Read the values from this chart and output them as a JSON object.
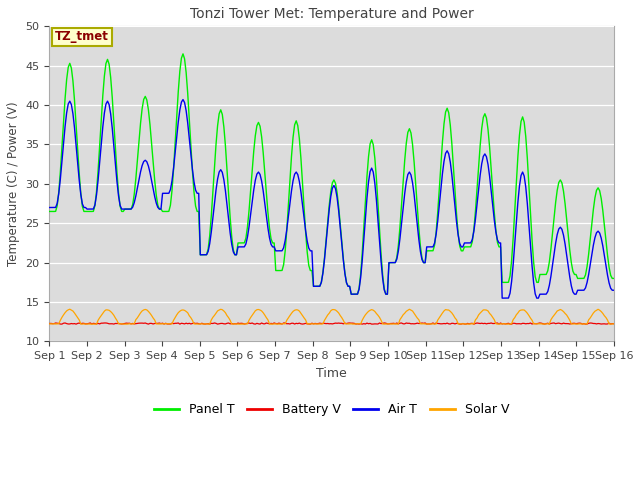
{
  "title": "Tonzi Tower Met: Temperature and Power",
  "xlabel": "Time",
  "ylabel": "Temperature (C) / Power (V)",
  "ylim": [
    10,
    50
  ],
  "xlim": [
    0,
    15
  ],
  "xtick_labels": [
    "Sep 1",
    "Sep 2",
    "Sep 3",
    "Sep 4",
    "Sep 5",
    "Sep 6",
    "Sep 7",
    "Sep 8",
    "Sep 9",
    "Sep 10",
    "Sep 11",
    "Sep 12",
    "Sep 13",
    "Sep 14",
    "Sep 15",
    "Sep 16"
  ],
  "ytick_values": [
    10,
    15,
    20,
    25,
    30,
    35,
    40,
    45,
    50
  ],
  "panel_t_color": "#00EE00",
  "air_t_color": "#0000EE",
  "battery_v_color": "#EE0000",
  "solar_v_color": "#FFA500",
  "bg_color": "#DCDCDC",
  "annotation_text": "TZ_tmet",
  "annotation_bg": "#FFFFCC",
  "annotation_fg": "#8B0000",
  "annotation_border": "#AAAA00",
  "legend_labels": [
    "Panel T",
    "Battery V",
    "Air T",
    "Solar V"
  ],
  "legend_colors": [
    "#00EE00",
    "#EE0000",
    "#0000EE",
    "#FFA500"
  ],
  "panel_peaks": [
    45.3,
    45.8,
    41.1,
    46.5,
    39.4,
    37.8,
    38.0,
    30.5,
    35.6,
    37.0,
    39.6,
    38.9,
    38.5,
    30.5,
    29.5
  ],
  "panel_mins": [
    26.5,
    26.5,
    26.8,
    26.5,
    21.0,
    22.5,
    19.0,
    17.0,
    16.0,
    20.0,
    21.5,
    22.0,
    17.5,
    18.5,
    18.0
  ],
  "air_peaks": [
    40.5,
    40.5,
    33.0,
    40.7,
    31.8,
    31.5,
    31.5,
    29.8,
    32.0,
    31.5,
    34.2,
    33.8,
    31.5,
    24.5,
    24.0
  ],
  "air_mins": [
    27.0,
    26.8,
    26.8,
    28.8,
    21.0,
    22.0,
    21.5,
    17.0,
    16.0,
    20.0,
    22.0,
    22.5,
    15.5,
    16.0,
    16.5
  ],
  "solar_amp": 1.8,
  "battery_base": 12.2,
  "solar_base": 12.2
}
